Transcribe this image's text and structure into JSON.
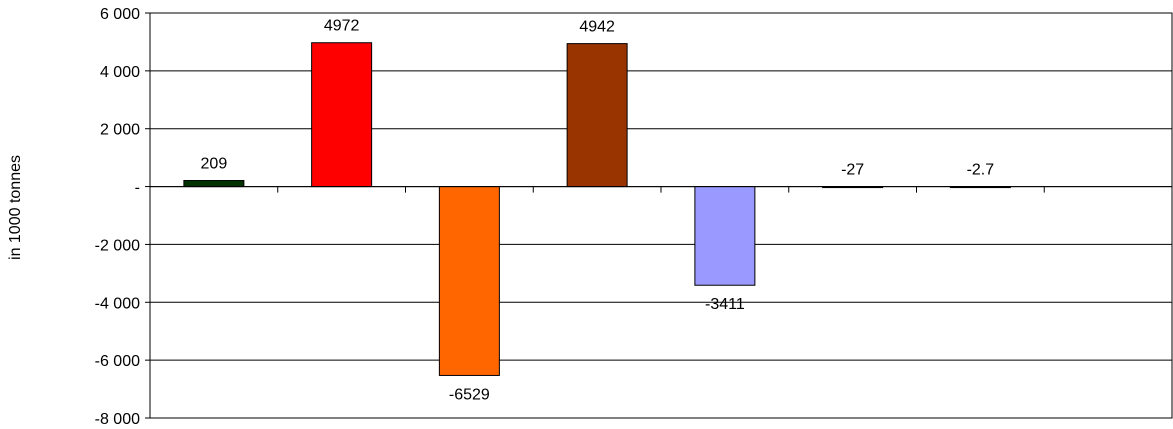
{
  "chart_data": {
    "type": "bar",
    "title": "",
    "xlabel": "",
    "ylabel": "in 1000 tonnes",
    "ylim": [
      -8000,
      6000
    ],
    "yticks": [
      6000,
      4000,
      2000,
      0,
      -2000,
      -4000,
      -6000,
      -8000
    ],
    "ytick_labels": [
      "6 000",
      "4 000",
      "2 000",
      "-",
      "-2 000",
      "-4 000",
      "-6 000",
      "-8 000"
    ],
    "grid": true,
    "categories": [
      "",
      "",
      "",
      "",
      "",
      "",
      "",
      ""
    ],
    "values": [
      209,
      4972,
      -6529,
      4942,
      -3411,
      -27,
      -2.7,
      null
    ],
    "data_labels": [
      "209",
      "4972",
      "-6529",
      "4942",
      "-3411",
      "-27",
      "-2.7",
      ""
    ],
    "colors": [
      "#003300",
      "#FF0000",
      "#FF6600",
      "#993300",
      "#9999FF",
      "#000000",
      "#000000",
      "#000000"
    ]
  }
}
